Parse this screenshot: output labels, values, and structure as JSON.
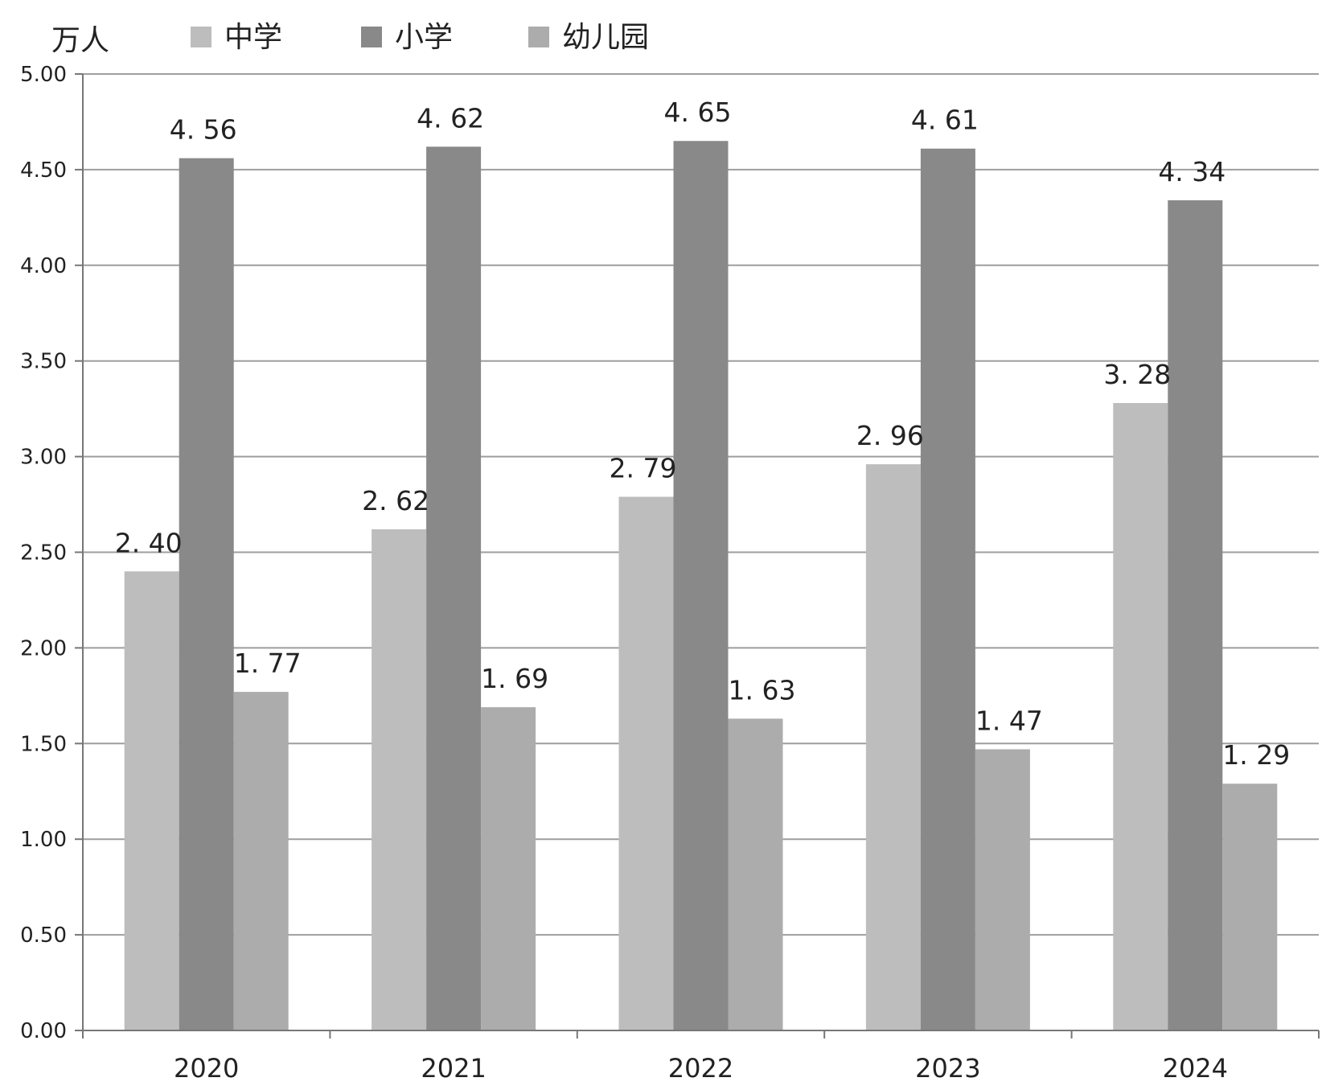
{
  "chart_data": {
    "type": "bar",
    "ylabel": "万人",
    "ylim": [
      0,
      5
    ],
    "yticks": [
      "0.00",
      "0.50",
      "1.00",
      "1.50",
      "2.00",
      "2.50",
      "3.00",
      "3.50",
      "4.00",
      "4.50",
      "5.00"
    ],
    "grid": true,
    "legend": "top",
    "categories": [
      "2020",
      "2021",
      "2022",
      "2023",
      "2024"
    ],
    "series": [
      {
        "name": "中学",
        "color": "#bdbdbd",
        "values": [
          2.4,
          2.62,
          2.79,
          2.96,
          3.28
        ],
        "labels": [
          "2. 40",
          "2. 62",
          "2. 79",
          "2. 96",
          "3. 28"
        ]
      },
      {
        "name": "小学",
        "color": "#898989",
        "values": [
          4.56,
          4.62,
          4.65,
          4.61,
          4.34
        ],
        "labels": [
          "4. 56",
          "4. 62",
          "4. 65",
          "4. 61",
          "4. 34"
        ]
      },
      {
        "name": "幼儿园",
        "color": "#acacac",
        "values": [
          1.77,
          1.69,
          1.63,
          1.47,
          1.29
        ],
        "labels": [
          "1. 77",
          "1. 69",
          "1. 63",
          "1. 47",
          "1. 29"
        ]
      }
    ]
  }
}
